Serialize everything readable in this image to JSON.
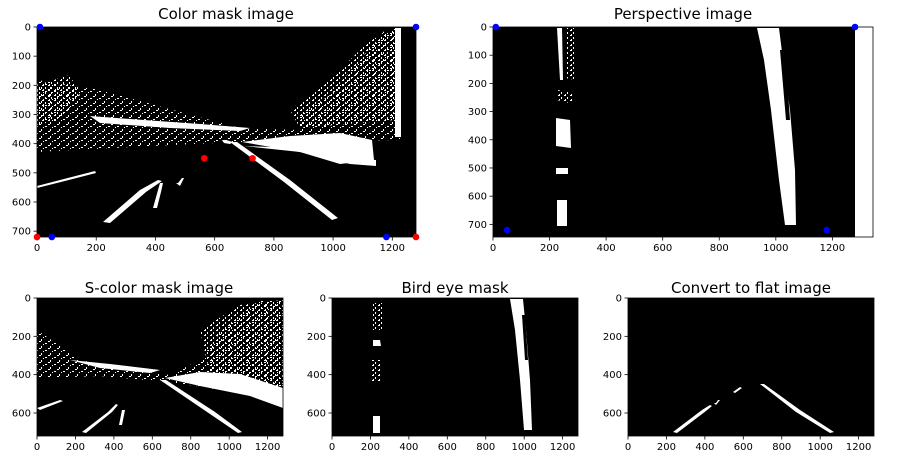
{
  "figure": {
    "panels": [
      {
        "title": "Color mask image",
        "x_ticks": [
          "0",
          "200",
          "400",
          "600",
          "800",
          "1000",
          "1200"
        ],
        "y_ticks": [
          "0",
          "100",
          "200",
          "300",
          "400",
          "500",
          "600",
          "700"
        ],
        "xlim": [
          0,
          1280
        ],
        "ylim": [
          720,
          0
        ],
        "points": [
          {
            "color": "#0000ff",
            "x": 10,
            "y": 0
          },
          {
            "color": "#0000ff",
            "x": 1280,
            "y": 0
          },
          {
            "color": "#0000ff",
            "x": 50,
            "y": 720
          },
          {
            "color": "#0000ff",
            "x": 1180,
            "y": 720
          },
          {
            "color": "#ff0000",
            "x": 0,
            "y": 720
          },
          {
            "color": "#ff0000",
            "x": 1280,
            "y": 720
          },
          {
            "color": "#ff0000",
            "x": 565,
            "y": 450
          },
          {
            "color": "#ff0000",
            "x": 728,
            "y": 450
          }
        ]
      },
      {
        "title": "Perspective image",
        "x_ticks": [
          "0",
          "200",
          "400",
          "600",
          "800",
          "1000",
          "1200"
        ],
        "y_ticks": [
          "0",
          "100",
          "200",
          "300",
          "400",
          "500",
          "600",
          "700"
        ],
        "xlim": [
          0,
          1280
        ],
        "ylim": [
          720,
          0
        ],
        "points": [
          {
            "color": "#0000ff",
            "x": 10,
            "y": 0
          },
          {
            "color": "#0000ff",
            "x": 1280,
            "y": 0
          },
          {
            "color": "#0000ff",
            "x": 50,
            "y": 720
          },
          {
            "color": "#0000ff",
            "x": 1180,
            "y": 720
          }
        ]
      },
      {
        "title": "S-color mask image",
        "x_ticks": [
          "0",
          "200",
          "400",
          "600",
          "800",
          "1000",
          "1200"
        ],
        "y_ticks": [
          "0",
          "200",
          "400",
          "600"
        ],
        "xlim": [
          0,
          1280
        ],
        "ylim": [
          720,
          0
        ],
        "points": []
      },
      {
        "title": "Bird eye mask",
        "x_ticks": [
          "0",
          "200",
          "400",
          "600",
          "800",
          "1000",
          "1200"
        ],
        "y_ticks": [
          "0",
          "200",
          "400",
          "600"
        ],
        "xlim": [
          0,
          1280
        ],
        "ylim": [
          720,
          0
        ],
        "points": []
      },
      {
        "title": "Convert to flat image",
        "x_ticks": [
          "0",
          "200",
          "400",
          "600",
          "800",
          "1000",
          "1200"
        ],
        "y_ticks": [
          "0",
          "200",
          "400",
          "600"
        ],
        "xlim": [
          0,
          1280
        ],
        "ylim": [
          720,
          0
        ],
        "points": []
      }
    ]
  },
  "colors": {
    "background": "#000000",
    "mask": "#ffffff",
    "src_points": "#ff0000",
    "dst_points": "#0000ff"
  }
}
